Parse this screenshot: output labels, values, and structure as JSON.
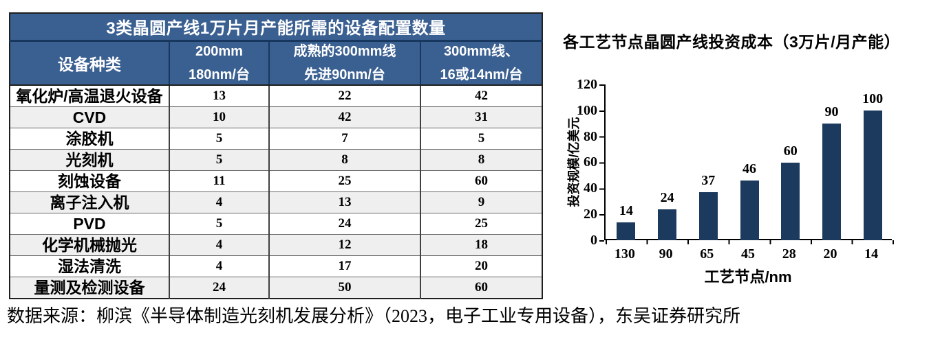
{
  "colors": {
    "table_header_blue": "#3A5F91",
    "table_header_divider_navy": "#17375E",
    "bar_navy": "#1B3A5D",
    "row_stripe_gray": "#EFEFEF"
  },
  "chart_data": [
    {
      "type": "table",
      "title": "3类晶圆产线1万片月产能所需的设备配置数量",
      "header": {
        "col0": "设备种类",
        "col1_line1": "200mm",
        "col1_line2": "180nm/台",
        "col2_line1": "成熟的300mm线",
        "col2_line2": "先进90nm/台",
        "col3_line1": "300mm线、",
        "col3_line2": "16或14nm/台"
      },
      "rows": [
        {
          "label": "氧化炉/高温退火设备",
          "v1": "13",
          "v2": "22",
          "v3": "42"
        },
        {
          "label": "CVD",
          "v1": "10",
          "v2": "42",
          "v3": "31"
        },
        {
          "label": "涂胶机",
          "v1": "5",
          "v2": "7",
          "v3": "5"
        },
        {
          "label": "光刻机",
          "v1": "5",
          "v2": "8",
          "v3": "8"
        },
        {
          "label": "刻蚀设备",
          "v1": "11",
          "v2": "25",
          "v3": "60"
        },
        {
          "label": "离子注入机",
          "v1": "4",
          "v2": "13",
          "v3": "9"
        },
        {
          "label": "PVD",
          "v1": "5",
          "v2": "24",
          "v3": "25"
        },
        {
          "label": "化学机械抛光",
          "v1": "4",
          "v2": "12",
          "v3": "18"
        },
        {
          "label": "湿法清洗",
          "v1": "4",
          "v2": "17",
          "v3": "20"
        },
        {
          "label": "量测及检测设备",
          "v1": "24",
          "v2": "50",
          "v3": "60"
        }
      ]
    },
    {
      "type": "bar",
      "title": "各工艺节点晶圆产线投资成本（3万片/月产能）",
      "categories": [
        "130",
        "90",
        "65",
        "45",
        "28",
        "20",
        "14"
      ],
      "values": [
        14,
        24,
        37,
        46,
        60,
        90,
        100
      ],
      "labels": [
        "14",
        "24",
        "37",
        "46",
        "60",
        "90",
        "100"
      ],
      "xlabel": "工艺节点/nm",
      "ylabel": "投资规模/亿美元",
      "ylim": [
        0,
        120
      ],
      "ytick_labels": [
        "120",
        "100",
        "80",
        "60",
        "40",
        "20",
        "0"
      ],
      "bar_color": "#1B3A5D",
      "grid": false,
      "legend": "none"
    }
  ],
  "source": {
    "text": "数据来源：柳滨《半导体制造光刻机发展分析》（2023，电子工业专用设备），东吴证券研究所"
  }
}
